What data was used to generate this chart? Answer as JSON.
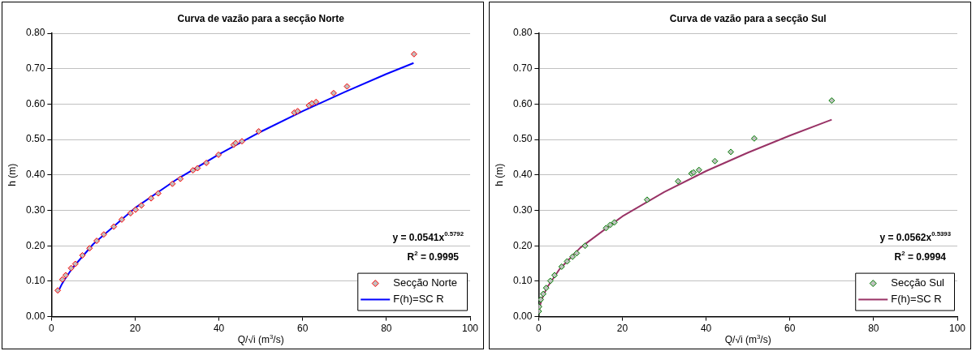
{
  "chart_data": [
    {
      "type": "scatter",
      "title": "Curva de vazão para a secção Norte",
      "xlabel": "Q/√i (m$^{3}$/s)",
      "ylabel": "h (m)",
      "xlim": [
        0,
        100
      ],
      "xticks": [
        0,
        20,
        40,
        60,
        80,
        100
      ],
      "ylim": [
        0,
        0.8
      ],
      "yticks": [
        {
          "value": 0,
          "label": "0.00"
        },
        {
          "value": 0.1,
          "label": "0.10"
        },
        {
          "value": 0.2,
          "label": "0.20"
        },
        {
          "value": 0.3,
          "label": "0.30"
        },
        {
          "value": 0.4,
          "label": "0.40"
        },
        {
          "value": 0.5,
          "label": "0.50"
        },
        {
          "value": 0.6,
          "label": "0.60"
        },
        {
          "value": 0.7,
          "label": "0.70"
        },
        {
          "value": 0.8,
          "label": "0.80"
        }
      ],
      "grid": "y",
      "legend": "bottom right",
      "annotations": [
        "y = 0.0541x$^{0.5792}$",
        "R$^{2}$ = 0.9995"
      ],
      "series": [
        {
          "name": "Secção Norte",
          "type": "scatter",
          "marker": "diamond",
          "color": "#ff0000",
          "x": [
            1.5,
            2.6,
            3.4,
            4.7,
            5.7,
            7.4,
            9.1,
            10.8,
            12.5,
            14.9,
            16.8,
            18.9,
            20.1,
            21.5,
            23.8,
            25.5,
            28.9,
            30.8,
            33.8,
            34.9,
            37.0,
            39.9,
            43.5,
            44.0,
            45.5,
            49.5,
            58.0,
            58.8,
            61.5,
            62.2,
            63.2,
            67.4,
            70.6,
            86.6
          ],
          "values": [
            0.074,
            0.105,
            0.117,
            0.137,
            0.149,
            0.173,
            0.193,
            0.214,
            0.232,
            0.254,
            0.274,
            0.292,
            0.302,
            0.314,
            0.334,
            0.348,
            0.375,
            0.389,
            0.413,
            0.419,
            0.434,
            0.457,
            0.485,
            0.49,
            0.495,
            0.523,
            0.576,
            0.58,
            0.596,
            0.602,
            0.606,
            0.631,
            0.65,
            0.741
          ]
        },
        {
          "name": "F(h)=SC R",
          "type": "line",
          "marker": "none",
          "color": "#0000ff",
          "x": [
            1.5,
            2.5,
            3,
            5,
            10,
            20,
            30,
            40,
            50,
            60,
            70,
            80,
            86.5
          ],
          "values": [
            0.068,
            0.092,
            0.102,
            0.137,
            0.205,
            0.307,
            0.388,
            0.458,
            0.522,
            0.58,
            0.634,
            0.685,
            0.716
          ]
        }
      ]
    },
    {
      "type": "scatter",
      "title": "Curva de vazão para a secção Sul",
      "xlabel": "Q/√i (m$^{3}$/s)",
      "ylabel": "h (m)",
      "xlim": [
        0,
        100
      ],
      "xticks": [
        0,
        20,
        40,
        60,
        80,
        100
      ],
      "ylim": [
        0,
        0.8
      ],
      "yticks": [
        {
          "value": 0,
          "label": "0.00"
        },
        {
          "value": 0.1,
          "label": "0.10"
        },
        {
          "value": 0.2,
          "label": "0.20"
        },
        {
          "value": 0.3,
          "label": "0.30"
        },
        {
          "value": 0.4,
          "label": "0.40"
        },
        {
          "value": 0.5,
          "label": "0.50"
        },
        {
          "value": 0.6,
          "label": "0.60"
        },
        {
          "value": 0.7,
          "label": "0.70"
        },
        {
          "value": 0.8,
          "label": "0.80"
        }
      ],
      "grid": "y",
      "legend": "bottom right",
      "annotations": [
        "y = 0.0562x$^{0.5393}$",
        "R$^{2}$ = 0.9994"
      ],
      "series": [
        {
          "name": "Secção Sul",
          "type": "scatter",
          "marker": "diamond",
          "color": "#008000",
          "x": [
            0.05,
            0.1,
            0.5,
            1.1,
            1.8,
            2.8,
            3.8,
            5.5,
            6.8,
            8.1,
            9.1,
            11.1,
            16.1,
            17.1,
            18.1,
            25.9,
            33.3,
            36.5,
            37.0,
            38.3,
            42.1,
            45.9,
            51.5,
            70.0
          ],
          "values": [
            0.015,
            0.028,
            0.048,
            0.064,
            0.081,
            0.101,
            0.117,
            0.141,
            0.156,
            0.169,
            0.179,
            0.2,
            0.25,
            0.259,
            0.266,
            0.33,
            0.382,
            0.404,
            0.407,
            0.414,
            0.439,
            0.465,
            0.503,
            0.61
          ]
        },
        {
          "name": "F(h)=SC R",
          "type": "line",
          "marker": "none",
          "color": "#993366",
          "x": [
            0.1,
            0.5,
            1,
            2,
            5,
            10,
            20,
            30,
            40,
            50,
            60,
            70
          ],
          "values": [
            0.016,
            0.039,
            0.056,
            0.082,
            0.134,
            0.195,
            0.283,
            0.352,
            0.411,
            0.463,
            0.511,
            0.556
          ]
        }
      ]
    }
  ]
}
